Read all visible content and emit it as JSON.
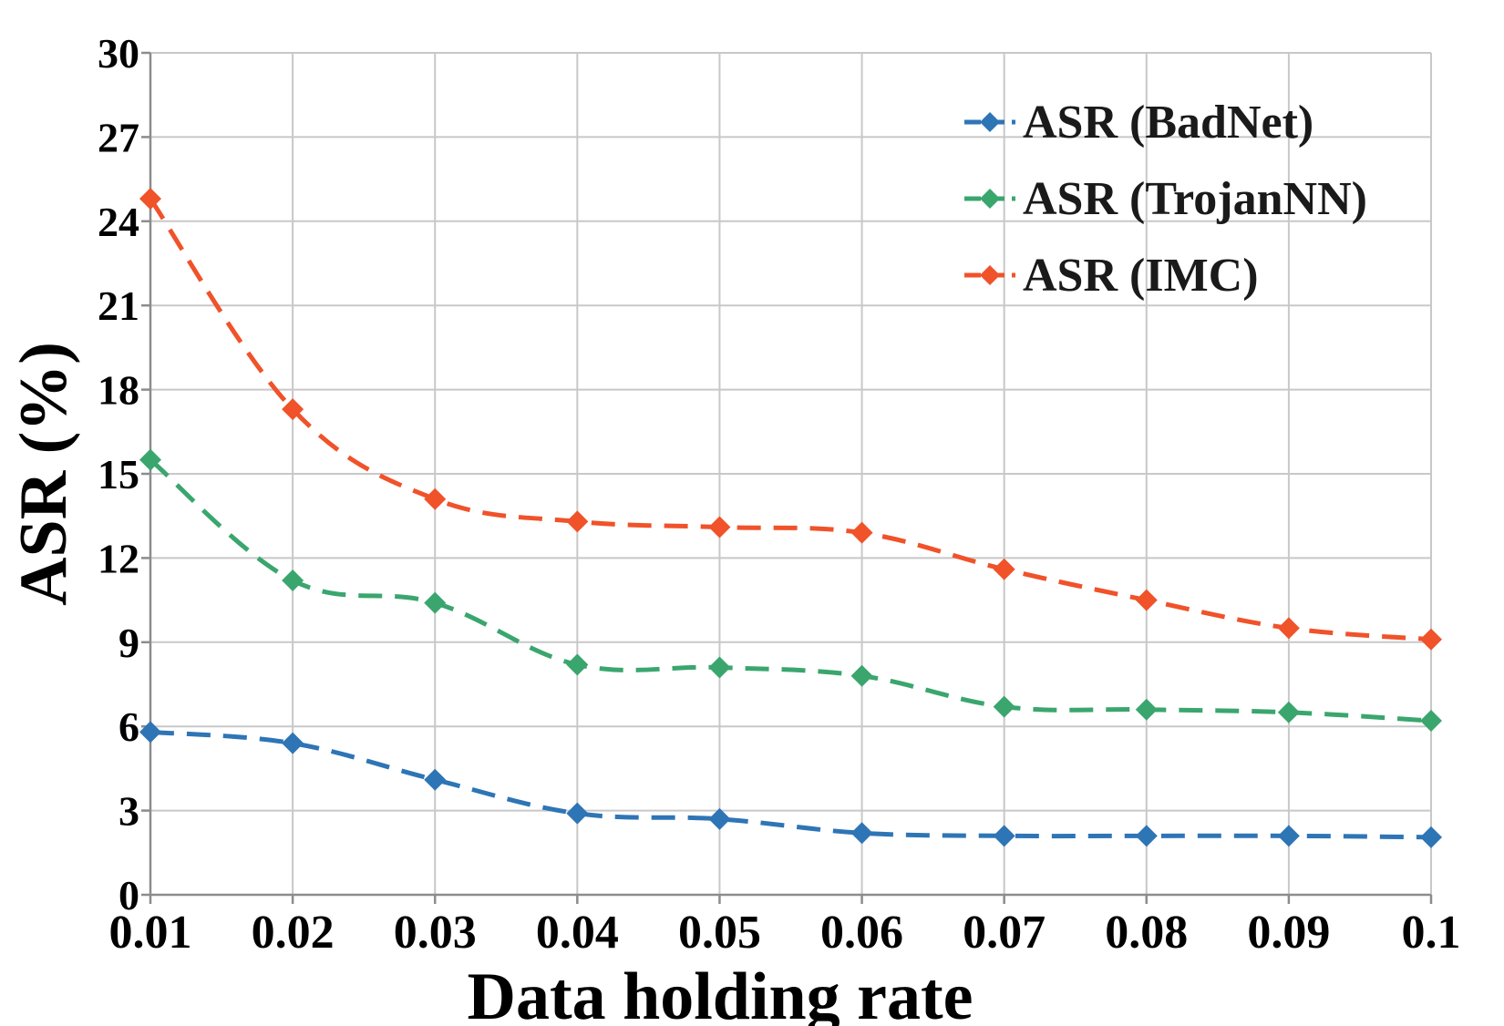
{
  "chart_data": {
    "type": "line",
    "title": "",
    "xlabel": "Data holding rate",
    "ylabel": "ASR (%)",
    "x": [
      0.01,
      0.02,
      0.03,
      0.04,
      0.05,
      0.06,
      0.07,
      0.08,
      0.09,
      0.1
    ],
    "x_tick_labels": [
      "0.01",
      "0.02",
      "0.03",
      "0.04",
      "0.05",
      "0.06",
      "0.07",
      "0.08",
      "0.09",
      "0.1"
    ],
    "ylim": [
      0,
      30
    ],
    "y_ticks": [
      0,
      3,
      6,
      9,
      12,
      15,
      18,
      21,
      24,
      27,
      30
    ],
    "grid": true,
    "legend_position": "top-right",
    "series": [
      {
        "name": "ASR (BadNet)",
        "color": "#2e75b6",
        "marker": "diamond",
        "line_style": "dashed",
        "values": [
          5.8,
          5.4,
          4.1,
          2.9,
          2.7,
          2.2,
          2.1,
          2.1,
          2.1,
          2.05
        ]
      },
      {
        "name": "ASR (TrojanNN)",
        "color": "#3aa66e",
        "marker": "diamond",
        "line_style": "dashed",
        "values": [
          15.5,
          11.2,
          10.4,
          8.2,
          8.1,
          7.8,
          6.7,
          6.6,
          6.5,
          6.2
        ]
      },
      {
        "name": "ASR (IMC)",
        "color": "#f0522a",
        "marker": "diamond",
        "line_style": "dashed",
        "values": [
          24.8,
          17.3,
          14.1,
          13.3,
          13.1,
          12.9,
          11.6,
          10.5,
          9.5,
          9.1
        ]
      }
    ]
  }
}
